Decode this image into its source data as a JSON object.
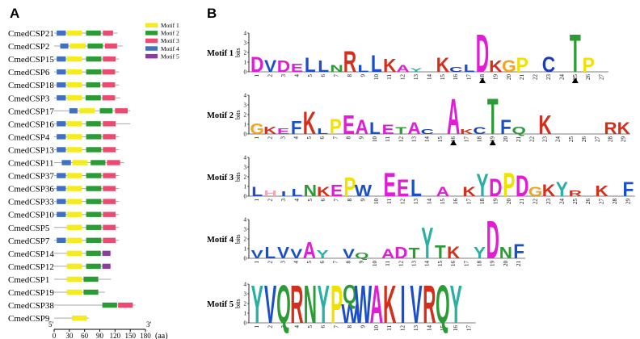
{
  "panels": {
    "a": "A",
    "b": "B"
  },
  "panel_a": {
    "legend": [
      {
        "label": "Motif 1",
        "color": "#f5ec1e"
      },
      {
        "label": "Motif 2",
        "color": "#2a9b35"
      },
      {
        "label": "Motif 3",
        "color": "#ec4a71"
      },
      {
        "label": "Motif 4",
        "color": "#3f70c2"
      },
      {
        "label": "Motif 5",
        "color": "#8e3aa0"
      }
    ],
    "axis": {
      "ticks": [
        "0",
        "30",
        "60",
        "90",
        "120",
        "150",
        "180"
      ],
      "unit": "(aa)",
      "end5": "5'",
      "end3": "3'"
    },
    "proteins": [
      {
        "name": "CmedCSP21",
        "length": 125,
        "motifs": [
          {
            "m": 4,
            "s": 5,
            "e": 23
          },
          {
            "m": 1,
            "s": 25,
            "e": 55
          },
          {
            "m": 2,
            "s": 63,
            "e": 92
          },
          {
            "m": 3,
            "s": 96,
            "e": 116
          }
        ]
      },
      {
        "name": "CmedCSP2",
        "length": 135,
        "motifs": [
          {
            "m": 4,
            "s": 12,
            "e": 28
          },
          {
            "m": 1,
            "s": 31,
            "e": 62
          },
          {
            "m": 2,
            "s": 66,
            "e": 96
          },
          {
            "m": 3,
            "s": 100,
            "e": 124
          }
        ]
      },
      {
        "name": "CmedCSP15",
        "length": 128,
        "motifs": [
          {
            "m": 4,
            "s": 5,
            "e": 23
          },
          {
            "m": 1,
            "s": 25,
            "e": 55
          },
          {
            "m": 2,
            "s": 63,
            "e": 93
          },
          {
            "m": 3,
            "s": 96,
            "e": 121
          }
        ]
      },
      {
        "name": "CmedCSP6",
        "length": 128,
        "motifs": [
          {
            "m": 4,
            "s": 5,
            "e": 23
          },
          {
            "m": 1,
            "s": 25,
            "e": 55
          },
          {
            "m": 2,
            "s": 63,
            "e": 93
          },
          {
            "m": 3,
            "s": 95,
            "e": 120
          }
        ]
      },
      {
        "name": "CmedCSP18",
        "length": 128,
        "motifs": [
          {
            "m": 4,
            "s": 5,
            "e": 23
          },
          {
            "m": 1,
            "s": 25,
            "e": 55
          },
          {
            "m": 2,
            "s": 63,
            "e": 91
          },
          {
            "m": 3,
            "s": 95,
            "e": 120
          }
        ]
      },
      {
        "name": "CmedCSP3",
        "length": 130,
        "motifs": [
          {
            "m": 4,
            "s": 5,
            "e": 23
          },
          {
            "m": 1,
            "s": 25,
            "e": 55
          },
          {
            "m": 2,
            "s": 62,
            "e": 92
          },
          {
            "m": 3,
            "s": 95,
            "e": 120
          }
        ]
      },
      {
        "name": "CmedCSP17",
        "length": 150,
        "motifs": [
          {
            "m": 4,
            "s": 30,
            "e": 46
          },
          {
            "m": 1,
            "s": 50,
            "e": 80
          },
          {
            "m": 2,
            "s": 90,
            "e": 115
          },
          {
            "m": 3,
            "s": 120,
            "e": 145
          }
        ]
      },
      {
        "name": "CmedCSP16",
        "length": 150,
        "motifs": [
          {
            "m": 4,
            "s": 5,
            "e": 23
          },
          {
            "m": 1,
            "s": 25,
            "e": 55
          },
          {
            "m": 2,
            "s": 63,
            "e": 92
          },
          {
            "m": 3,
            "s": 96,
            "e": 121
          }
        ]
      },
      {
        "name": "CmedCSP4",
        "length": 128,
        "motifs": [
          {
            "m": 4,
            "s": 5,
            "e": 23
          },
          {
            "m": 1,
            "s": 25,
            "e": 55
          },
          {
            "m": 2,
            "s": 63,
            "e": 93
          },
          {
            "m": 3,
            "s": 96,
            "e": 121
          }
        ]
      },
      {
        "name": "CmedCSP13",
        "length": 128,
        "motifs": [
          {
            "m": 4,
            "s": 5,
            "e": 23
          },
          {
            "m": 1,
            "s": 25,
            "e": 55
          },
          {
            "m": 2,
            "s": 63,
            "e": 93
          },
          {
            "m": 3,
            "s": 96,
            "e": 121
          }
        ]
      },
      {
        "name": "CmedCSP11",
        "length": 138,
        "motifs": [
          {
            "m": 4,
            "s": 15,
            "e": 33
          },
          {
            "m": 1,
            "s": 36,
            "e": 66
          },
          {
            "m": 2,
            "s": 72,
            "e": 101
          },
          {
            "m": 3,
            "s": 104,
            "e": 130
          }
        ]
      },
      {
        "name": "CmedCSP37",
        "length": 128,
        "motifs": [
          {
            "m": 4,
            "s": 5,
            "e": 23
          },
          {
            "m": 1,
            "s": 25,
            "e": 55
          },
          {
            "m": 2,
            "s": 63,
            "e": 93
          },
          {
            "m": 3,
            "s": 96,
            "e": 121
          }
        ]
      },
      {
        "name": "CmedCSP36",
        "length": 128,
        "motifs": [
          {
            "m": 4,
            "s": 5,
            "e": 23
          },
          {
            "m": 1,
            "s": 25,
            "e": 55
          },
          {
            "m": 2,
            "s": 63,
            "e": 93
          },
          {
            "m": 3,
            "s": 96,
            "e": 121
          }
        ]
      },
      {
        "name": "CmedCSP33",
        "length": 128,
        "motifs": [
          {
            "m": 4,
            "s": 5,
            "e": 23
          },
          {
            "m": 1,
            "s": 25,
            "e": 55
          },
          {
            "m": 2,
            "s": 63,
            "e": 93
          },
          {
            "m": 3,
            "s": 96,
            "e": 121
          }
        ]
      },
      {
        "name": "CmedCSP10",
        "length": 128,
        "motifs": [
          {
            "m": 4,
            "s": 5,
            "e": 23
          },
          {
            "m": 1,
            "s": 25,
            "e": 55
          },
          {
            "m": 2,
            "s": 63,
            "e": 93
          },
          {
            "m": 3,
            "s": 96,
            "e": 121
          }
        ]
      },
      {
        "name": "CmedCSP5",
        "length": 128,
        "motifs": [
          {
            "m": 1,
            "s": 25,
            "e": 55
          },
          {
            "m": 2,
            "s": 63,
            "e": 93
          },
          {
            "m": 3,
            "s": 96,
            "e": 121
          }
        ]
      },
      {
        "name": "CmedCSP7",
        "length": 128,
        "motifs": [
          {
            "m": 4,
            "s": 5,
            "e": 23
          },
          {
            "m": 1,
            "s": 25,
            "e": 55
          },
          {
            "m": 2,
            "s": 63,
            "e": 93
          },
          {
            "m": 3,
            "s": 96,
            "e": 121
          }
        ]
      },
      {
        "name": "CmedCSP14",
        "length": 112,
        "motifs": [
          {
            "m": 1,
            "s": 25,
            "e": 55
          },
          {
            "m": 2,
            "s": 63,
            "e": 92
          },
          {
            "m": 5,
            "s": 95,
            "e": 111
          }
        ]
      },
      {
        "name": "CmedCSP12",
        "length": 112,
        "motifs": [
          {
            "m": 1,
            "s": 25,
            "e": 55
          },
          {
            "m": 2,
            "s": 63,
            "e": 92
          },
          {
            "m": 5,
            "s": 95,
            "e": 111
          }
        ]
      },
      {
        "name": "CmedCSP1",
        "length": 112,
        "motifs": [
          {
            "m": 1,
            "s": 25,
            "e": 55
          },
          {
            "m": 2,
            "s": 58,
            "e": 87
          }
        ]
      },
      {
        "name": "CmedCSP19",
        "length": 100,
        "motifs": [
          {
            "m": 1,
            "s": 25,
            "e": 55
          },
          {
            "m": 2,
            "s": 58,
            "e": 87
          }
        ]
      },
      {
        "name": "CmedCSP38",
        "length": 160,
        "motifs": [
          {
            "m": 2,
            "s": 95,
            "e": 124
          },
          {
            "m": 3,
            "s": 126,
            "e": 155
          }
        ]
      },
      {
        "name": "CmedCSP9",
        "length": 68,
        "motifs": [
          {
            "m": 1,
            "s": 35,
            "e": 64
          }
        ]
      }
    ]
  },
  "panel_b": {
    "axis_label": "bits",
    "ticks": [
      "0",
      "1",
      "2",
      "3",
      "4"
    ],
    "motifs": [
      {
        "label": "Motif 1",
        "seq": "DVDELLNRLLKAYKCLDKGPCTP",
        "heights": [
          1.6,
          1.3,
          1.2,
          0.9,
          1.5,
          1.2,
          0.7,
          2.2,
          0.7,
          1.8,
          1.4,
          0.7,
          0.4,
          1.5,
          0.5,
          0.8,
          4.0,
          1.2,
          1.3,
          1.5,
          1.6,
          4.0,
          1.5
        ],
        "positions": [
          1,
          2,
          3,
          4,
          5,
          6,
          7,
          8,
          9,
          10,
          11,
          12,
          13,
          15,
          16,
          17,
          18,
          19,
          20,
          21,
          23,
          25,
          26
        ],
        "arrows": [
          18,
          25
        ],
        "count": 27
      },
      {
        "name_placeholder": "",
        "label": "Motif 2",
        "seq": "GKEFKLPEALETACAKCTFQKRK",
        "heights": [
          1.1,
          0.8,
          0.6,
          1.4,
          2.4,
          0.6,
          1.6,
          2.0,
          1.5,
          1.3,
          1.0,
          0.7,
          1.3,
          0.5,
          3.8,
          0.5,
          0.7,
          3.8,
          1.5,
          0.8,
          2.0,
          1.3,
          1.3
        ],
        "positions": [
          1,
          2,
          3,
          4,
          5,
          6,
          7,
          8,
          9,
          10,
          11,
          12,
          13,
          14,
          16,
          17,
          18,
          19,
          20,
          21,
          23,
          28,
          29
        ],
        "arrows": [
          16,
          19
        ],
        "count": 29
      },
      {
        "label": "Motif 3",
        "seq": "LHILNKEPWEELAKYDPDGKYRKF",
        "heights": [
          1.0,
          0.6,
          0.5,
          0.8,
          1.2,
          1.0,
          1.2,
          2.0,
          1.2,
          2.5,
          1.8,
          1.8,
          1.0,
          1.0,
          2.4,
          1.9,
          2.5,
          2.2,
          1.0,
          1.3,
          1.5,
          0.6,
          1.1,
          1.5
        ],
        "positions": [
          1,
          2,
          3,
          4,
          5,
          6,
          7,
          8,
          9,
          11,
          12,
          13,
          15,
          17,
          18,
          19,
          20,
          21,
          22,
          23,
          24,
          25,
          27,
          29
        ],
        "arrows": [],
        "count": 29
      },
      {
        "label": "Motif 4",
        "seq": "VLVVAYVQADTYTKYDNF",
        "heights": [
          0.9,
          1.2,
          1.2,
          1.0,
          1.7,
          0.9,
          1.0,
          0.6,
          1.0,
          1.2,
          1.1,
          3.3,
          1.4,
          1.3,
          1.2,
          4.0,
          1.2,
          1.5
        ],
        "positions": [
          1,
          2,
          3,
          4,
          5,
          6,
          8,
          9,
          11,
          12,
          13,
          14,
          15,
          16,
          18,
          19,
          20,
          21
        ],
        "arrows": [],
        "count": 21
      },
      {
        "label": "Motif 5",
        "seq": "YVQRNYPWQWAKIVRQY",
        "heights": [
          4,
          4,
          4,
          4,
          4,
          4,
          4,
          2,
          2,
          4,
          4,
          4,
          4,
          4,
          4,
          4,
          4
        ],
        "positions": [
          1,
          2,
          3,
          4,
          5,
          6,
          7,
          8,
          8,
          9,
          10,
          11,
          12,
          13,
          14,
          15,
          16
        ],
        "arrows": [],
        "count": 17
      }
    ],
    "colors": {
      "hydrophobic": "#1a4fc9",
      "positive": "#2a9b35",
      "negative": "#d42f1c",
      "polar": "#f5a320",
      "aromatic": "#2ab0a3",
      "proline": "#f0e100",
      "cysteine": "#1a3eb5",
      "glycine": "#f5a320",
      "other": "#e01cd4"
    }
  }
}
